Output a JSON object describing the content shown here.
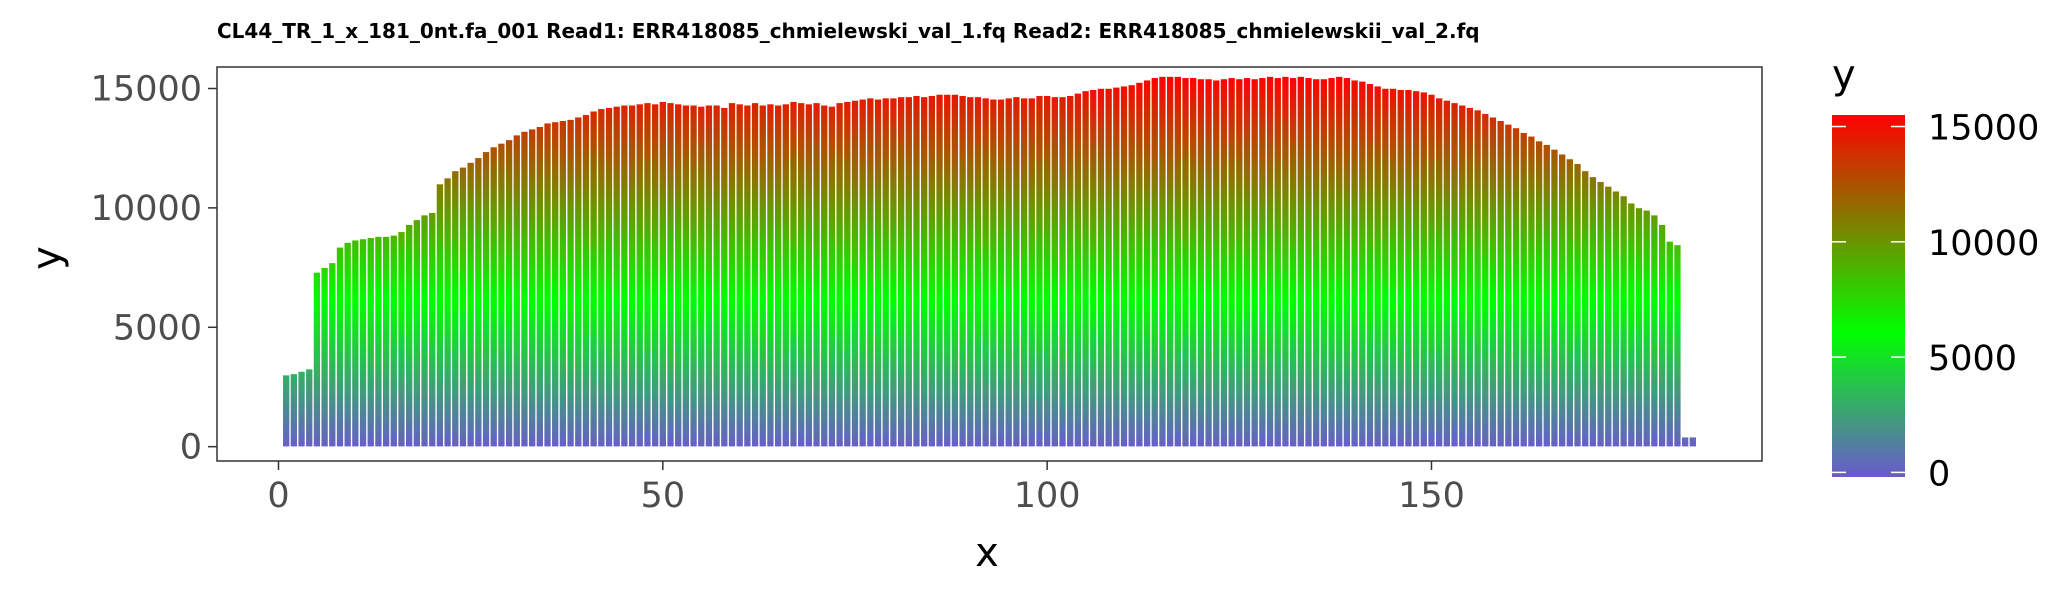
{
  "chart_data": {
    "type": "bar",
    "title": "CL44_TR_1_x_181_0nt.fa_001 Read1: ERR418085_chmielewski_val_1.fq Read2: ERR418085_chmielewskii_val_2.fq",
    "xlabel": "x",
    "ylabel": "y",
    "xlim": [
      -8,
      193
    ],
    "ylim": [
      -600,
      15900
    ],
    "x_ticks": [
      0,
      50,
      100,
      150
    ],
    "y_ticks": [
      0,
      5000,
      10000,
      15000
    ],
    "x_tick_labels": [
      "0",
      "50",
      "100",
      "150"
    ],
    "y_tick_labels": [
      "0",
      "5000",
      "10000",
      "15000"
    ],
    "grid": false,
    "x": [
      1,
      2,
      3,
      4,
      5,
      6,
      7,
      8,
      9,
      10,
      11,
      12,
      13,
      14,
      15,
      16,
      17,
      18,
      19,
      20,
      21,
      22,
      23,
      24,
      25,
      26,
      27,
      28,
      29,
      30,
      31,
      32,
      33,
      34,
      35,
      36,
      37,
      38,
      39,
      40,
      41,
      42,
      43,
      44,
      45,
      46,
      47,
      48,
      49,
      50,
      51,
      52,
      53,
      54,
      55,
      56,
      57,
      58,
      59,
      60,
      61,
      62,
      63,
      64,
      65,
      66,
      67,
      68,
      69,
      70,
      71,
      72,
      73,
      74,
      75,
      76,
      77,
      78,
      79,
      80,
      81,
      82,
      83,
      84,
      85,
      86,
      87,
      88,
      89,
      90,
      91,
      92,
      93,
      94,
      95,
      96,
      97,
      98,
      99,
      100,
      101,
      102,
      103,
      104,
      105,
      106,
      107,
      108,
      109,
      110,
      111,
      112,
      113,
      114,
      115,
      116,
      117,
      118,
      119,
      120,
      121,
      122,
      123,
      124,
      125,
      126,
      127,
      128,
      129,
      130,
      131,
      132,
      133,
      134,
      135,
      136,
      137,
      138,
      139,
      140,
      141,
      142,
      143,
      144,
      145,
      146,
      147,
      148,
      149,
      150,
      151,
      152,
      153,
      154,
      155,
      156,
      157,
      158,
      159,
      160,
      161,
      162,
      163,
      164,
      165,
      166,
      167,
      168,
      169,
      170,
      171,
      172,
      173,
      174,
      175,
      176,
      177,
      178,
      179,
      180,
      181,
      182,
      183,
      184
    ],
    "values": [
      3000,
      3050,
      3150,
      3250,
      7300,
      7500,
      7700,
      8350,
      8550,
      8650,
      8700,
      8750,
      8800,
      8800,
      8850,
      9000,
      9300,
      9500,
      9700,
      9800,
      11000,
      11250,
      11550,
      11700,
      11900,
      12100,
      12350,
      12550,
      12700,
      12850,
      13050,
      13200,
      13300,
      13400,
      13550,
      13600,
      13650,
      13700,
      13800,
      13900,
      14050,
      14150,
      14200,
      14250,
      14300,
      14300,
      14350,
      14400,
      14350,
      14450,
      14400,
      14350,
      14300,
      14300,
      14250,
      14300,
      14300,
      14200,
      14400,
      14350,
      14300,
      14400,
      14300,
      14350,
      14300,
      14350,
      14450,
      14400,
      14350,
      14400,
      14300,
      14250,
      14400,
      14450,
      14500,
      14550,
      14600,
      14550,
      14600,
      14600,
      14650,
      14650,
      14700,
      14650,
      14700,
      14750,
      14750,
      14750,
      14700,
      14650,
      14650,
      14600,
      14550,
      14550,
      14600,
      14650,
      14600,
      14600,
      14700,
      14700,
      14650,
      14650,
      14700,
      14800,
      14900,
      14950,
      15000,
      15000,
      15050,
      15100,
      15150,
      15250,
      15350,
      15450,
      15500,
      15500,
      15500,
      15450,
      15450,
      15400,
      15400,
      15350,
      15400,
      15450,
      15400,
      15450,
      15400,
      15450,
      15500,
      15450,
      15500,
      15450,
      15500,
      15450,
      15400,
      15400,
      15450,
      15500,
      15450,
      15350,
      15300,
      15200,
      15100,
      15000,
      15000,
      14950,
      14950,
      14900,
      14850,
      14750,
      14600,
      14500,
      14400,
      14300,
      14200,
      14100,
      13950,
      13800,
      13650,
      13500,
      13350,
      13150,
      13000,
      12800,
      12650,
      12450,
      12250,
      12050,
      11850,
      11550,
      11300,
      11100,
      10900,
      10700,
      10500,
      10200,
      10000,
      9900,
      9700,
      9300,
      8600,
      8450,
      400,
      400
    ],
    "series": [
      {
        "name": "",
        "values_ref": "values"
      }
    ],
    "legend": {
      "title": "y",
      "placement": "right",
      "type": "colorbar",
      "range": [
        -200,
        15500
      ],
      "ticks": [
        0,
        5000,
        10000,
        15000
      ],
      "tick_labels": [
        "0",
        "5000",
        "10000",
        "15000"
      ]
    },
    "colors": {
      "low": "#6a5acd",
      "mid": "#00ff00",
      "high": "#ff0000",
      "mid_value": 6100,
      "panel_border": "#333333",
      "tick_color": "#333333",
      "bar_outline": "#ffffff"
    }
  }
}
